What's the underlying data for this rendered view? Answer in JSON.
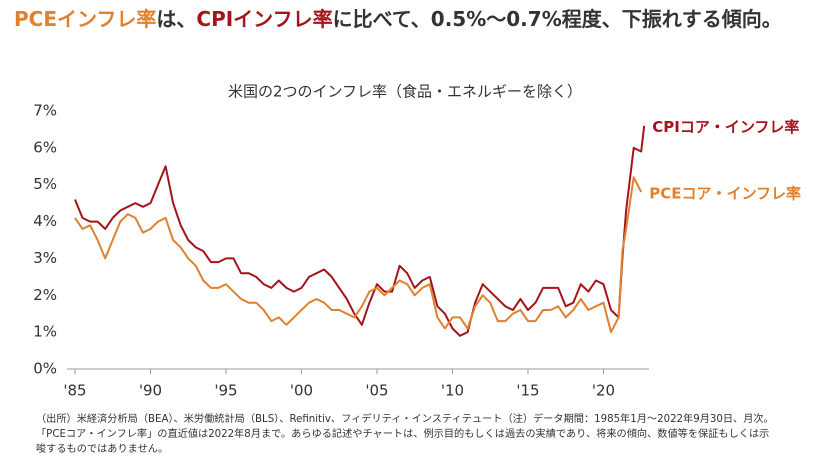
{
  "headline": {
    "segments": [
      {
        "text": "PCEインフレ率",
        "color": "#e0812f"
      },
      {
        "text": "は、",
        "color": "#333333"
      },
      {
        "text": "CPIインフレ率",
        "color": "#a3141c"
      },
      {
        "text": "に比べて、0.5%〜0.7%程度、下振れする傾向。",
        "color": "#333333"
      }
    ]
  },
  "chart_data": {
    "type": "line",
    "title": "米国の2つのインフレ率（食品・エネルギーを除く）",
    "x": [
      1985,
      1985.5,
      1986,
      1986.5,
      1987,
      1987.5,
      1988,
      1988.5,
      1989,
      1989.5,
      1990,
      1990.5,
      1991,
      1991.5,
      1992,
      1992.5,
      1993,
      1993.5,
      1994,
      1994.5,
      1995,
      1995.5,
      1996,
      1996.5,
      1997,
      1997.5,
      1998,
      1998.5,
      1999,
      1999.5,
      2000,
      2000.5,
      2001,
      2001.5,
      2002,
      2002.5,
      2003,
      2003.5,
      2004,
      2004.5,
      2005,
      2005.5,
      2006,
      2006.5,
      2007,
      2007.5,
      2008,
      2008.5,
      2009,
      2009.5,
      2010,
      2010.5,
      2011,
      2011.5,
      2012,
      2012.5,
      2013,
      2013.5,
      2014,
      2014.5,
      2015,
      2015.5,
      2016,
      2016.5,
      2017,
      2017.5,
      2018,
      2018.5,
      2019,
      2019.5,
      2020,
      2020.5,
      2021,
      2021.25,
      2021.5,
      2022,
      2022.5,
      2022.7
    ],
    "series": [
      {
        "name": "CPIコア・インフレ率",
        "color": "#a3141c",
        "values": [
          4.6,
          4.1,
          4.0,
          4.0,
          3.8,
          4.1,
          4.3,
          4.4,
          4.5,
          4.4,
          4.5,
          5.0,
          5.5,
          4.5,
          3.9,
          3.5,
          3.3,
          3.2,
          2.9,
          2.9,
          3.0,
          3.0,
          2.6,
          2.6,
          2.5,
          2.3,
          2.2,
          2.4,
          2.2,
          2.1,
          2.2,
          2.5,
          2.6,
          2.7,
          2.5,
          2.2,
          1.9,
          1.5,
          1.2,
          1.8,
          2.3,
          2.1,
          2.1,
          2.8,
          2.6,
          2.2,
          2.4,
          2.5,
          1.7,
          1.5,
          1.1,
          0.9,
          1.0,
          1.8,
          2.3,
          2.1,
          1.9,
          1.7,
          1.6,
          1.9,
          1.6,
          1.8,
          2.2,
          2.2,
          2.2,
          1.7,
          1.8,
          2.3,
          2.1,
          2.4,
          2.3,
          1.6,
          1.4,
          3.0,
          4.3,
          6.0,
          5.9,
          6.6
        ]
      },
      {
        "name": "PCEコア・インフレ率",
        "color": "#e0812f",
        "values": [
          4.1,
          3.8,
          3.9,
          3.5,
          3.0,
          3.5,
          4.0,
          4.2,
          4.1,
          3.7,
          3.8,
          4.0,
          4.1,
          3.5,
          3.3,
          3.0,
          2.8,
          2.4,
          2.2,
          2.2,
          2.3,
          2.1,
          1.9,
          1.8,
          1.8,
          1.6,
          1.3,
          1.4,
          1.2,
          1.4,
          1.6,
          1.8,
          1.9,
          1.8,
          1.6,
          1.6,
          1.5,
          1.4,
          1.7,
          2.1,
          2.2,
          2.0,
          2.2,
          2.4,
          2.3,
          2.0,
          2.2,
          2.3,
          1.4,
          1.1,
          1.4,
          1.4,
          1.1,
          1.7,
          2.0,
          1.8,
          1.3,
          1.3,
          1.5,
          1.6,
          1.3,
          1.3,
          1.6,
          1.6,
          1.7,
          1.4,
          1.6,
          1.9,
          1.6,
          1.7,
          1.8,
          1.0,
          1.4,
          3.2,
          3.8,
          5.2,
          4.8,
          null
        ]
      }
    ],
    "xlim": [
      1985,
      2022.75
    ],
    "xticks": [
      {
        "value": 1985,
        "label": "'85"
      },
      {
        "value": 1990,
        "label": "'90"
      },
      {
        "value": 1995,
        "label": "'95"
      },
      {
        "value": 2000,
        "label": "'00"
      },
      {
        "value": 2005,
        "label": "'05"
      },
      {
        "value": 2010,
        "label": "'10"
      },
      {
        "value": 2015,
        "label": "'15"
      },
      {
        "value": 2020,
        "label": "'20"
      }
    ],
    "ylim": [
      0,
      7
    ],
    "yticks": [
      {
        "value": 0,
        "label": "0%"
      },
      {
        "value": 1,
        "label": "1%"
      },
      {
        "value": 2,
        "label": "2%"
      },
      {
        "value": 3,
        "label": "3%"
      },
      {
        "value": 4,
        "label": "4%"
      },
      {
        "value": 5,
        "label": "5%"
      },
      {
        "value": 6,
        "label": "6%"
      },
      {
        "value": 7,
        "label": "7%"
      }
    ],
    "grid": false
  },
  "footnote": [
    "（出所）米経済分析局（BEA）、米労働統計局（BLS）、Refinitiv、フィデリティ・インスティテュート（注）データ期間：1985年1月〜2022年9月30日、月次。",
    "「PCEコア・インフレ率」の直近値は2022年8月まで。あらゆる記述やチャートは、例示目的もしくは過去の実績であり、将来の傾向、数値等を保証もしくは示",
    "唆するものではありません。"
  ]
}
